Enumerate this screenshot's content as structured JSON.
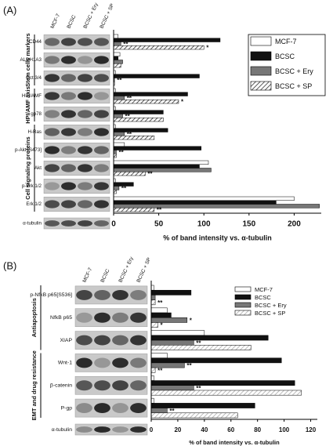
{
  "chart_data": [
    {
      "type": "bar",
      "orientation": "horizontal",
      "panel_label": "(A)",
      "lanes": [
        "MCF-7",
        "BCSC",
        "BCSC + Ery",
        "BCSC + SP"
      ],
      "categories": [
        "CD44",
        "ALDH1A3",
        "Oct 3/4",
        "HPI/AMF",
        "gp78",
        "H-Ras",
        "p-Akt [S473]",
        "Akt",
        "p-Erk 1/2",
        "Erk 1/2"
      ],
      "loading_control": "α-tubulin",
      "groups": [
        {
          "label": "Stem cells markers",
          "rows": [
            0,
            2
          ]
        },
        {
          "label": "HPI/AMF axis",
          "rows": [
            3,
            4
          ]
        },
        {
          "label": "Cell signaling proteins",
          "rows": [
            5,
            9
          ]
        }
      ],
      "series": [
        {
          "name": "MCF-7",
          "color": "#ffffff",
          "hatch": false,
          "values": [
            5,
            7,
            2,
            2,
            2,
            2,
            12,
            105,
            2,
            200
          ],
          "significance": [
            null,
            null,
            null,
            null,
            null,
            null,
            null,
            null,
            null,
            null
          ]
        },
        {
          "name": "BCSC",
          "color": "#111111",
          "hatch": false,
          "values": [
            118,
            5,
            95,
            82,
            55,
            60,
            97,
            95,
            22,
            180
          ],
          "significance": [
            null,
            null,
            null,
            null,
            null,
            null,
            null,
            null,
            null,
            null
          ]
        },
        {
          "name": "BCSC + Ery",
          "color": "#777777",
          "hatch": false,
          "values": [
            8,
            10,
            1,
            12,
            10,
            12,
            3,
            108,
            6,
            228
          ],
          "significance": [
            "**",
            null,
            "**",
            "**",
            "**",
            "**",
            "**",
            null,
            "**",
            null
          ]
        },
        {
          "name": "BCSC + SP",
          "color": "#333333",
          "hatch": true,
          "values": [
            100,
            8,
            1,
            72,
            55,
            45,
            3,
            35,
            3,
            45
          ],
          "significance": [
            "*",
            null,
            null,
            "*",
            null,
            null,
            null,
            "**",
            null,
            "**"
          ]
        }
      ],
      "xlim": [
        0,
        230
      ],
      "xticks": [
        0,
        50,
        100,
        150,
        200
      ],
      "xlabel": "% of band intensity vs. α-tubulin",
      "legend": "top-right"
    },
    {
      "type": "bar",
      "orientation": "horizontal",
      "panel_label": "(B)",
      "lanes": [
        "MCF-7",
        "BCSC",
        "BCSC + Ery",
        "BCSC + SP"
      ],
      "categories": [
        "p-NfkB p65[S536]",
        "NfkB p65",
        "XIAP",
        "Wnt-1",
        "β-catenin",
        "P-gp"
      ],
      "loading_control": "α-tubulin",
      "groups": [
        {
          "label": "Antiapoptosis",
          "rows": [
            0,
            2
          ]
        },
        {
          "label": "EMT and drug resistance",
          "rows": [
            3,
            5
          ]
        }
      ],
      "series": [
        {
          "name": "MCF-7",
          "color": "#ffffff",
          "hatch": false,
          "values": [
            2,
            12,
            40,
            12,
            2,
            2
          ],
          "significance": [
            null,
            null,
            null,
            null,
            null,
            null
          ]
        },
        {
          "name": "BCSC",
          "color": "#111111",
          "hatch": false,
          "values": [
            30,
            15,
            88,
            98,
            108,
            78
          ],
          "significance": [
            null,
            null,
            null,
            null,
            null,
            null
          ]
        },
        {
          "name": "BCSC + Ery",
          "color": "#777777",
          "hatch": false,
          "values": [
            3,
            27,
            32,
            25,
            32,
            12
          ],
          "significance": [
            null,
            "*",
            "**",
            "**",
            "**",
            "**"
          ]
        },
        {
          "name": "BCSC + SP",
          "color": "#aaaaaa",
          "hatch": true,
          "values": [
            3,
            5,
            75,
            3,
            113,
            65
          ],
          "significance": [
            "**",
            "*",
            null,
            "**",
            null,
            null
          ]
        }
      ],
      "xlim": [
        0,
        125
      ],
      "xticks": [
        0,
        20,
        40,
        60,
        80,
        100,
        120
      ],
      "xlabel": "% of band intensity vs. α-tubulin",
      "legend": "top-right"
    }
  ]
}
